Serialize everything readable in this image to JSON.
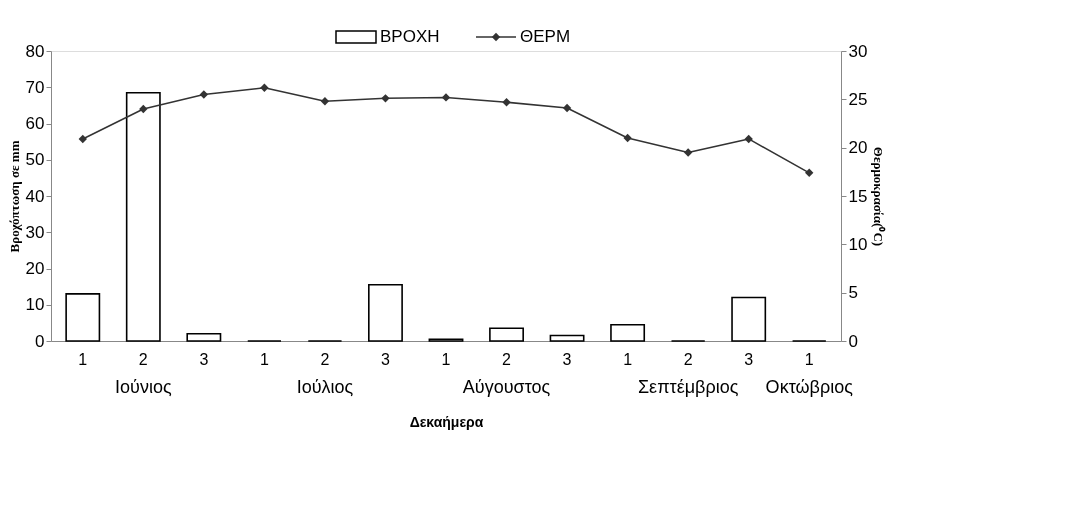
{
  "chart_data": {
    "type": "bar",
    "xlabel": "Δεκαήμερα",
    "ylabel": "Βροχόπτωση σε mm",
    "y2label": "Θερμοκρασία(⁰C)",
    "categories": [
      "1",
      "2",
      "3",
      "1",
      "2",
      "3",
      "1",
      "2",
      "3",
      "1",
      "2",
      "3",
      "1"
    ],
    "series": [
      {
        "name": "ΒΡΟΧΗ",
        "color": "#000000",
        "values": [
          13,
          68.5,
          2,
          0,
          0,
          15.5,
          0.5,
          3.5,
          1.5,
          4.5,
          0,
          12,
          0
        ]
      },
      {
        "name": "ΘΕΡΜ",
        "type": "line",
        "axis": "y2",
        "color": "#333333",
        "marker": "diamond",
        "values": [
          20.9,
          24.0,
          25.5,
          26.2,
          24.8,
          25.1,
          25.2,
          24.7,
          24.1,
          21.0,
          19.5,
          20.9,
          17.4
        ]
      }
    ],
    "ylim": [
      0,
      80
    ],
    "yticks": [
      0,
      10,
      20,
      30,
      40,
      50,
      60,
      70,
      80
    ],
    "y2lim": [
      0,
      30
    ],
    "y2ticks": [
      0,
      5,
      10,
      15,
      20,
      25,
      30
    ],
    "annotations": [
      "Ιούνιος",
      "Ιούλιος",
      "Αύγουστος",
      "Σεπτέμβριος",
      "Οκτώβριος"
    ],
    "grid": false,
    "legend": "top"
  }
}
